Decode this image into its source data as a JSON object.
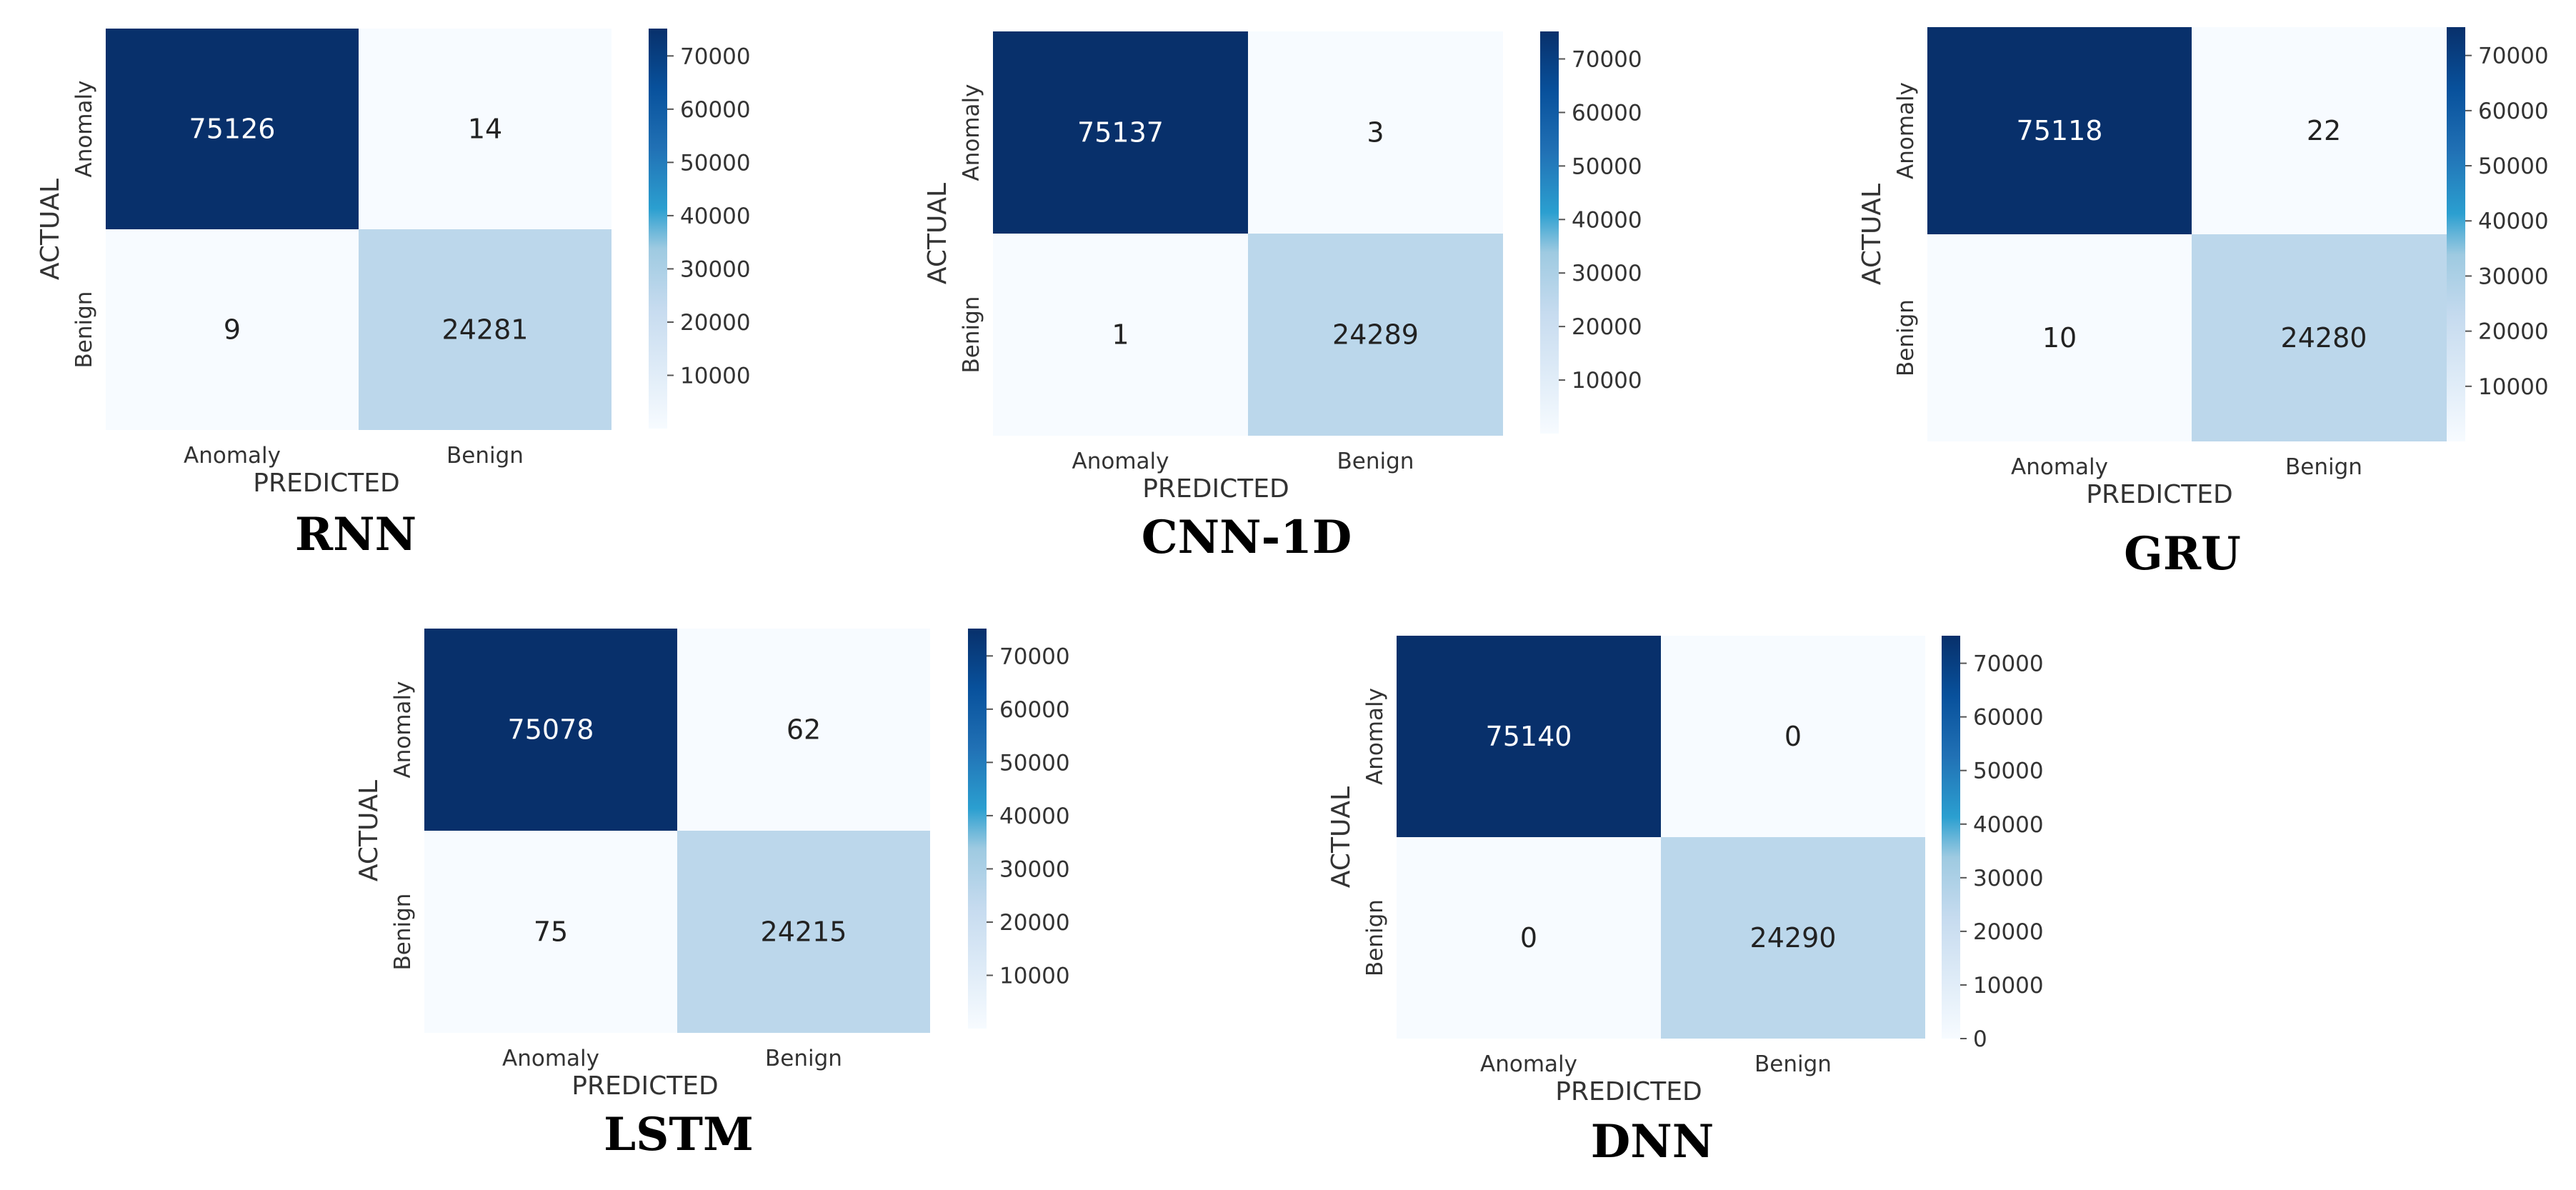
{
  "colors": {
    "colormap": [
      "#f7fbff",
      "#deebf7",
      "#c6dbef",
      "#9ecae1",
      "#4292c6",
      "#2171b5",
      "#08519c",
      "#08306b"
    ],
    "cell_high": "#08306b",
    "cell_mid": "#a2d2e8",
    "cell_low": "#f7fbff",
    "text_on_dark": "#ffffff",
    "text_on_light": "#222222"
  },
  "chart_data": [
    {
      "type": "heatmap",
      "title": "RNN",
      "xlabel": "PREDICTED",
      "ylabel": "ACTUAL",
      "x_categories": [
        "Anomaly",
        "Benign"
      ],
      "y_categories": [
        "Anomaly",
        "Benign"
      ],
      "values": [
        [
          75126,
          14
        ],
        [
          9,
          24281
        ]
      ],
      "colorbar": {
        "ticks": [
          10000,
          20000,
          30000,
          40000,
          50000,
          60000,
          70000
        ],
        "range": [
          0,
          75140
        ]
      }
    },
    {
      "type": "heatmap",
      "title": "CNN-1D",
      "xlabel": "PREDICTED",
      "ylabel": "ACTUAL",
      "x_categories": [
        "Anomaly",
        "Benign"
      ],
      "y_categories": [
        "Anomaly",
        "Benign"
      ],
      "values": [
        [
          75137,
          3
        ],
        [
          1,
          24289
        ]
      ],
      "colorbar": {
        "ticks": [
          10000,
          20000,
          30000,
          40000,
          50000,
          60000,
          70000
        ],
        "range": [
          0,
          75140
        ]
      }
    },
    {
      "type": "heatmap",
      "title": "GRU",
      "xlabel": "PREDICTED",
      "ylabel": "ACTUAL",
      "x_categories": [
        "Anomaly",
        "Benign"
      ],
      "y_categories": [
        "Anomaly",
        "Benign"
      ],
      "values": [
        [
          75118,
          22
        ],
        [
          10,
          24280
        ]
      ],
      "colorbar": {
        "ticks": [
          10000,
          20000,
          30000,
          40000,
          50000,
          60000,
          70000
        ],
        "range": [
          0,
          75140
        ]
      }
    },
    {
      "type": "heatmap",
      "title": "LSTM",
      "xlabel": "PREDICTED",
      "ylabel": "ACTUAL",
      "x_categories": [
        "Anomaly",
        "Benign"
      ],
      "y_categories": [
        "Anomaly",
        "Benign"
      ],
      "values": [
        [
          75078,
          62
        ],
        [
          75,
          24215
        ]
      ],
      "colorbar": {
        "ticks": [
          10000,
          20000,
          30000,
          40000,
          50000,
          60000,
          70000
        ],
        "range": [
          0,
          75140
        ]
      }
    },
    {
      "type": "heatmap",
      "title": "DNN",
      "xlabel": "PREDICTED",
      "ylabel": "ACTUAL",
      "x_categories": [
        "Anomaly",
        "Benign"
      ],
      "y_categories": [
        "Anomaly",
        "Benign"
      ],
      "values": [
        [
          75140,
          0
        ],
        [
          0,
          24290
        ]
      ],
      "colorbar": {
        "ticks": [
          0,
          10000,
          20000,
          30000,
          40000,
          50000,
          60000,
          70000
        ],
        "range": [
          0,
          75140
        ]
      }
    }
  ]
}
